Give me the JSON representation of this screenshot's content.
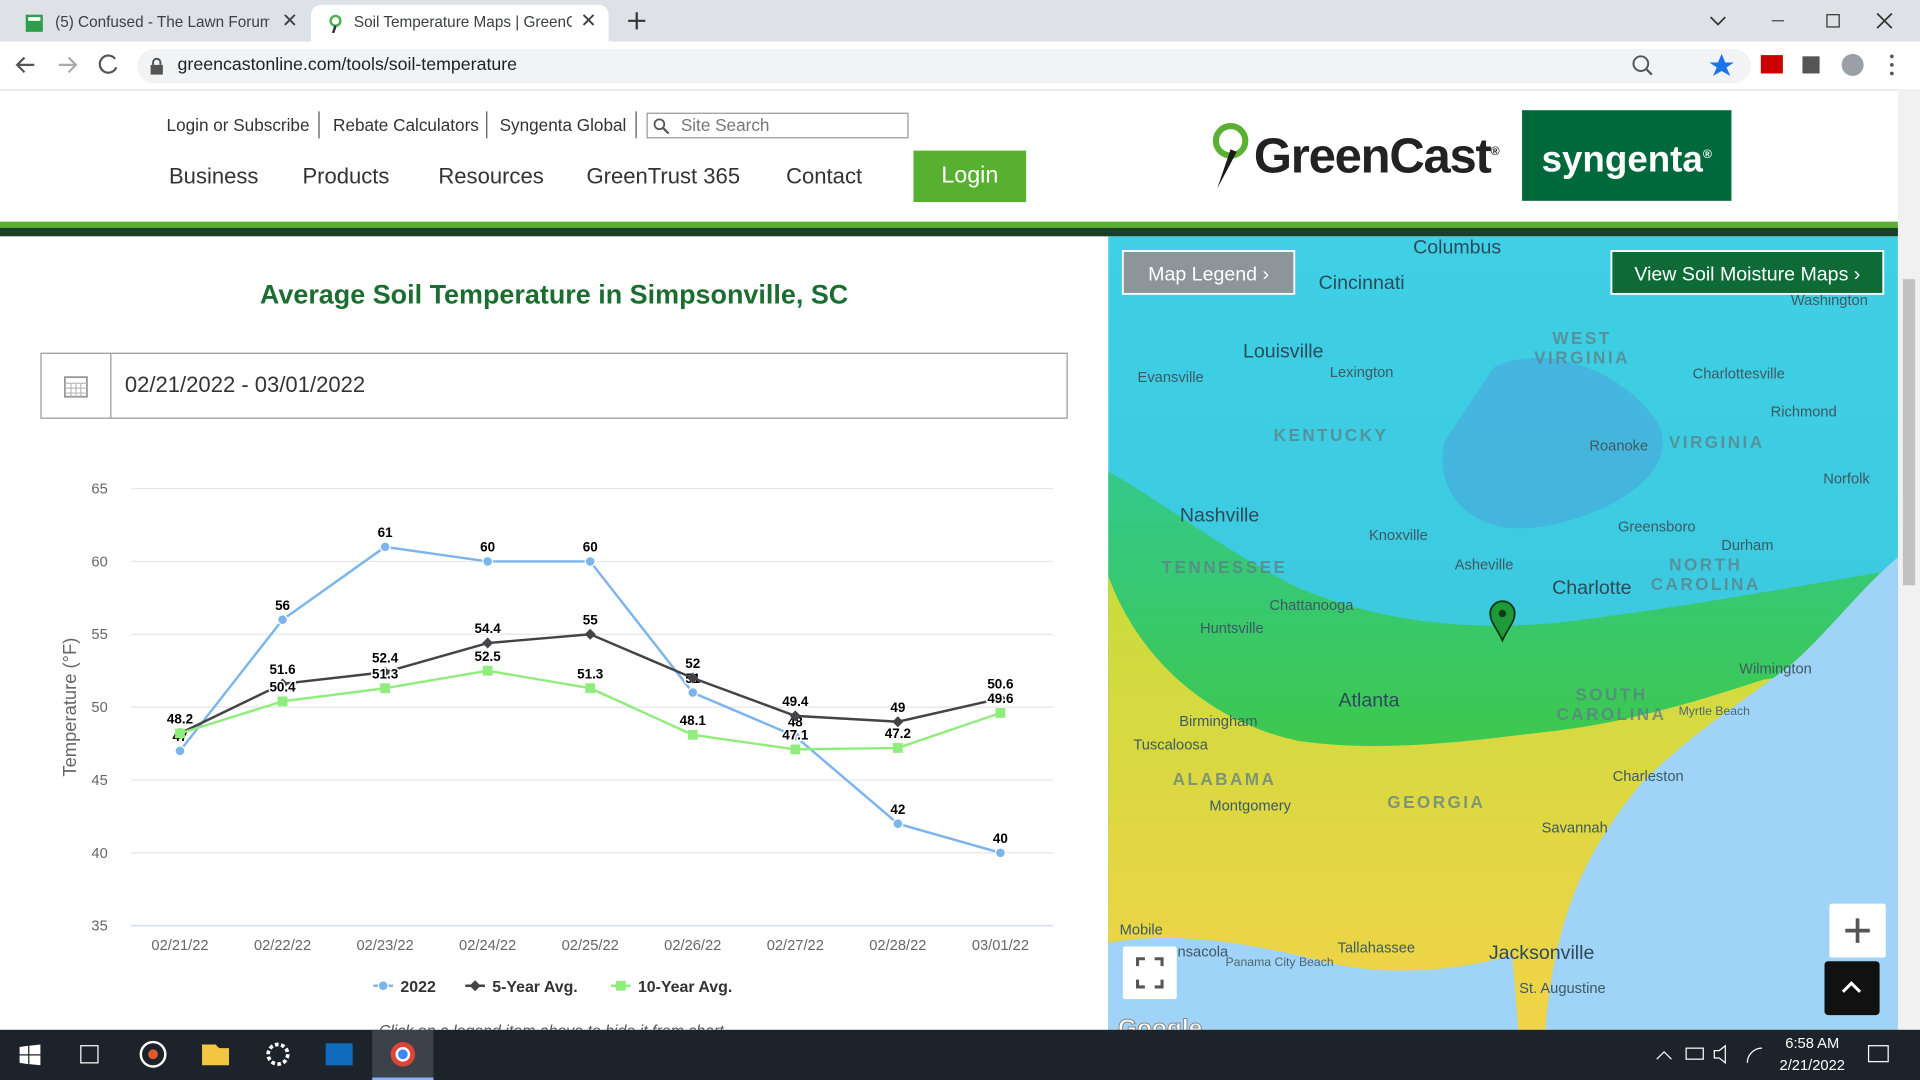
{
  "browser": {
    "tabs": [
      "(5) Confused - The Lawn Forum",
      "Soil Temperature Maps | GreenCa"
    ],
    "url": "greencastonline.com/tools/soil-temperature"
  },
  "header": {
    "top_links": [
      "Login or Subscribe",
      "Rebate Calculators",
      "Syngenta Global"
    ],
    "search_placeholder": "Site Search",
    "nav": [
      "Business",
      "Products",
      "Resources",
      "GreenTrust 365",
      "Contact"
    ],
    "login": "Login",
    "logo": "GreenCast",
    "logo_mark": "®",
    "brand": "syngenta",
    "brand_mark": "®"
  },
  "date_range": "02/21/2022 - 03/01/2022",
  "chart_data": {
    "type": "line",
    "title": "Average Soil Temperature in Simpsonville, SC",
    "y_label": "Temperature (°F)",
    "categories": [
      "02/21/22",
      "02/22/22",
      "02/23/22",
      "02/24/22",
      "02/25/22",
      "02/26/22",
      "02/27/22",
      "02/28/22",
      "03/01/22"
    ],
    "series": [
      {
        "name": "2022",
        "color": "#7cb5ec",
        "marker": "circle",
        "values": [
          47,
          56,
          61,
          60,
          60,
          51,
          48,
          42,
          40
        ]
      },
      {
        "name": "5-Year Avg.",
        "color": "#434348",
        "marker": "diamond",
        "values": [
          48.2,
          51.6,
          52.4,
          54.4,
          55,
          52,
          49.4,
          49,
          50.6
        ]
      },
      {
        "name": "10-Year Avg.",
        "color": "#90ed7d",
        "marker": "square",
        "values": [
          48.2,
          50.4,
          51.3,
          52.5,
          51.3,
          48.1,
          47.1,
          47.2,
          49.6
        ]
      }
    ],
    "ylim": [
      35,
      65
    ],
    "yticks": [
      35,
      40,
      45,
      50,
      55,
      60,
      65
    ],
    "grid": true,
    "legend": "bottom",
    "note": "Click on a legend item above to hide it from chart."
  },
  "map": {
    "buttons": [
      "Map Legend ›",
      "View Soil Moisture Maps ›"
    ],
    "labels": [
      "Columbus",
      "Cincinnati",
      "Washington",
      "Louisville",
      "Lexington",
      "Evansville",
      "WEST",
      "VIRGINIA",
      "Charlottesville",
      "Richmond",
      "KENTUCKY",
      "Roanoke",
      "VIRGINIA",
      "Norfolk",
      "Nashville",
      "Knoxville",
      "Greensboro",
      "Durham",
      "TENNESSEE",
      "Asheville",
      "Charlotte",
      "NORTH",
      "CAROLINA",
      "Chattanooga",
      "Huntsville",
      "Wilmington",
      "Atlanta",
      "SOUTH",
      "CAROLINA",
      "Myrtle Beach",
      "Birmingham",
      "Tuscaloosa",
      "Charleston",
      "ALABAMA",
      "Montgomery",
      "GEORGIA",
      "Savannah",
      "Mobile",
      "Pensacola",
      "Panama City Beach",
      "Tallahassee",
      "Jacksonville",
      "St. Augustine"
    ],
    "attribution": "Google"
  },
  "taskbar": {
    "time": "6:58 AM",
    "date": "2/21/2022"
  }
}
